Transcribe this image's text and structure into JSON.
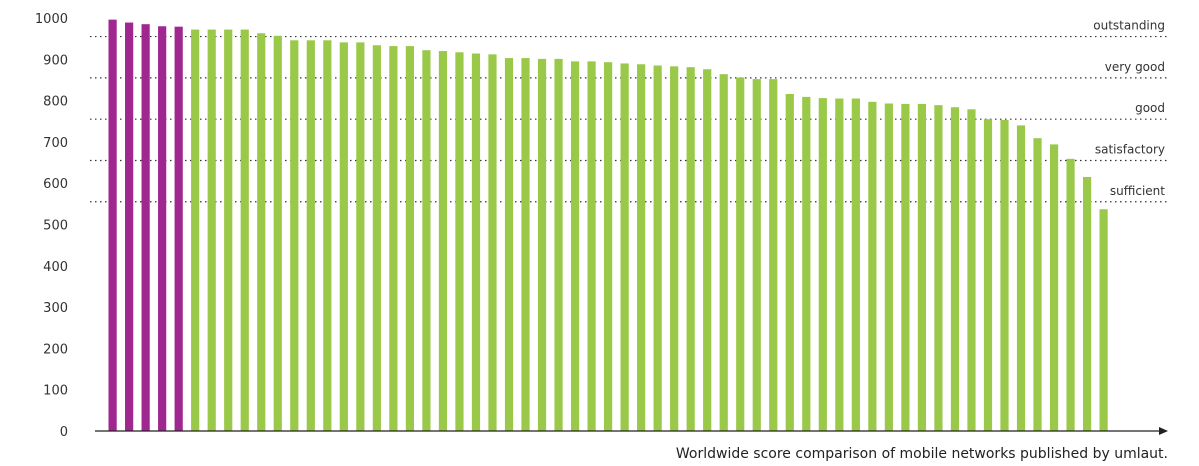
{
  "chart_data": {
    "type": "bar",
    "caption": "Worldwide score comparison of mobile networks published by umlaut.",
    "ylim": [
      0,
      1000
    ],
    "yticks": [
      0,
      100,
      200,
      300,
      400,
      500,
      600,
      700,
      800,
      900,
      1000
    ],
    "grid": false,
    "legend": "none",
    "highlight_count": 5,
    "colors": {
      "highlight": "#a0278f",
      "default": "#9ac94a",
      "axis": "#222222",
      "reference": "#333333"
    },
    "reference_lines": [
      {
        "value": 955,
        "label": "outstanding"
      },
      {
        "value": 855,
        "label": "very good"
      },
      {
        "value": 755,
        "label": "good"
      },
      {
        "value": 655,
        "label": "satisfactory"
      },
      {
        "value": 555,
        "label": "sufficient"
      }
    ],
    "values": [
      996,
      989,
      985,
      980,
      979,
      972,
      972,
      972,
      972,
      963,
      957,
      946,
      946,
      946,
      941,
      941,
      934,
      932,
      932,
      922,
      920,
      917,
      914,
      912,
      903,
      903,
      901,
      901,
      895,
      895,
      893,
      890,
      888,
      885,
      883,
      881,
      876,
      864,
      856,
      852,
      852,
      816,
      809,
      806,
      805,
      805,
      797,
      793,
      792,
      792,
      789,
      784,
      779,
      755,
      753,
      740,
      709,
      694,
      659,
      615,
      537
    ]
  }
}
